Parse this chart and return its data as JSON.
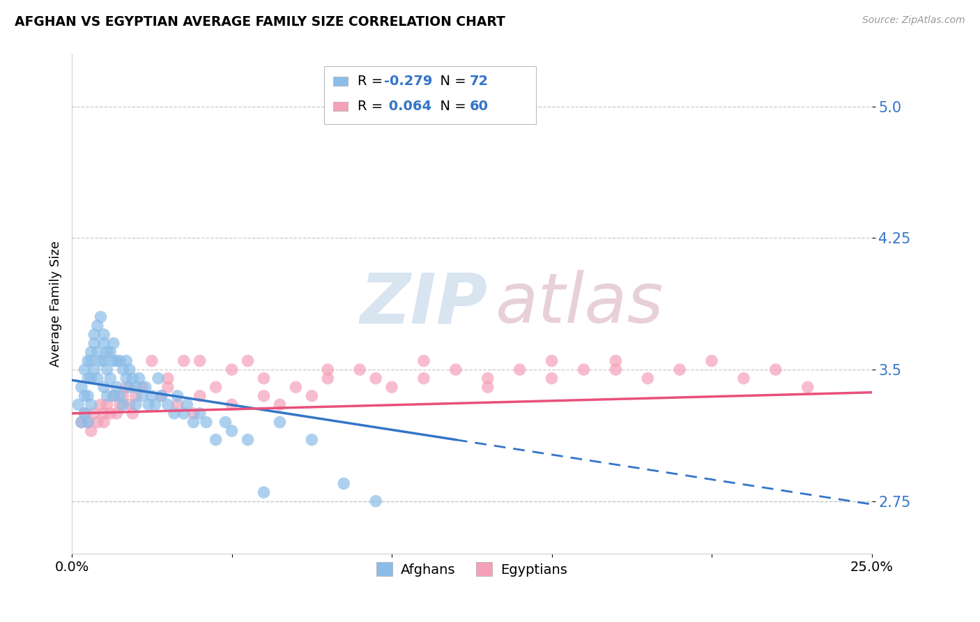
{
  "title": "AFGHAN VS EGYPTIAN AVERAGE FAMILY SIZE CORRELATION CHART",
  "source": "Source: ZipAtlas.com",
  "ylabel": "Average Family Size",
  "yticks": [
    2.75,
    3.5,
    4.25,
    5.0
  ],
  "xlim": [
    0.0,
    0.25
  ],
  "ylim": [
    2.45,
    5.3
  ],
  "legend_R_afghan": "R = -0.279",
  "legend_N_afghan": "N = 72",
  "legend_R_egyptian": "R =  0.064",
  "legend_N_egyptian": "N = 60",
  "afghan_color": "#8bbde8",
  "egyptian_color": "#f4a0b8",
  "trendline_afghan_color": "#3375c8",
  "trendline_egyptian_color": "#e8507a",
  "background_color": "#ffffff",
  "grid_color": "#c8c8c8",
  "watermark_zip": "ZIP",
  "watermark_atlas": "atlas",
  "afghans_x": [
    0.002,
    0.003,
    0.003,
    0.004,
    0.004,
    0.004,
    0.005,
    0.005,
    0.005,
    0.005,
    0.006,
    0.006,
    0.006,
    0.006,
    0.007,
    0.007,
    0.007,
    0.008,
    0.008,
    0.008,
    0.009,
    0.009,
    0.01,
    0.01,
    0.01,
    0.01,
    0.011,
    0.011,
    0.011,
    0.012,
    0.012,
    0.013,
    0.013,
    0.013,
    0.014,
    0.014,
    0.015,
    0.015,
    0.016,
    0.016,
    0.017,
    0.017,
    0.018,
    0.018,
    0.019,
    0.02,
    0.02,
    0.021,
    0.022,
    0.023,
    0.024,
    0.025,
    0.026,
    0.027,
    0.028,
    0.03,
    0.032,
    0.033,
    0.035,
    0.036,
    0.038,
    0.04,
    0.042,
    0.045,
    0.048,
    0.05,
    0.055,
    0.06,
    0.065,
    0.075,
    0.085,
    0.095
  ],
  "afghans_y": [
    3.3,
    3.4,
    3.2,
    3.5,
    3.35,
    3.25,
    3.55,
    3.45,
    3.35,
    3.2,
    3.6,
    3.55,
    3.45,
    3.3,
    3.7,
    3.65,
    3.5,
    3.75,
    3.6,
    3.45,
    3.8,
    3.55,
    3.7,
    3.65,
    3.55,
    3.4,
    3.6,
    3.5,
    3.35,
    3.6,
    3.45,
    3.65,
    3.55,
    3.35,
    3.55,
    3.4,
    3.55,
    3.35,
    3.5,
    3.3,
    3.55,
    3.45,
    3.5,
    3.4,
    3.45,
    3.4,
    3.3,
    3.45,
    3.35,
    3.4,
    3.3,
    3.35,
    3.3,
    3.45,
    3.35,
    3.3,
    3.25,
    3.35,
    3.25,
    3.3,
    3.2,
    3.25,
    3.2,
    3.1,
    3.2,
    3.15,
    3.1,
    2.8,
    3.2,
    3.1,
    2.85,
    2.75
  ],
  "egyptians_x": [
    0.003,
    0.004,
    0.005,
    0.006,
    0.007,
    0.008,
    0.009,
    0.01,
    0.01,
    0.011,
    0.012,
    0.013,
    0.014,
    0.015,
    0.016,
    0.017,
    0.018,
    0.019,
    0.02,
    0.022,
    0.025,
    0.028,
    0.03,
    0.033,
    0.035,
    0.038,
    0.04,
    0.045,
    0.05,
    0.055,
    0.06,
    0.065,
    0.07,
    0.075,
    0.08,
    0.09,
    0.1,
    0.11,
    0.12,
    0.13,
    0.14,
    0.15,
    0.16,
    0.17,
    0.18,
    0.19,
    0.2,
    0.21,
    0.22,
    0.23,
    0.15,
    0.17,
    0.13,
    0.11,
    0.095,
    0.08,
    0.06,
    0.05,
    0.04,
    0.03
  ],
  "egyptians_y": [
    3.2,
    3.25,
    3.2,
    3.15,
    3.25,
    3.2,
    3.3,
    3.25,
    3.2,
    3.3,
    3.25,
    3.35,
    3.25,
    3.3,
    3.35,
    3.4,
    3.3,
    3.25,
    3.35,
    3.4,
    3.55,
    3.35,
    3.4,
    3.3,
    3.55,
    3.25,
    3.35,
    3.4,
    3.3,
    3.55,
    3.35,
    3.3,
    3.4,
    3.35,
    3.45,
    3.5,
    3.4,
    3.45,
    3.5,
    3.4,
    3.5,
    3.45,
    3.5,
    3.55,
    3.45,
    3.5,
    3.55,
    3.45,
    3.5,
    3.4,
    3.55,
    3.5,
    3.45,
    3.55,
    3.45,
    3.5,
    3.45,
    3.5,
    3.55,
    3.45
  ],
  "trendline_afghan_x0": 0.0,
  "trendline_afghan_y0": 3.44,
  "trendline_afghan_x1": 0.12,
  "trendline_afghan_y1": 3.1,
  "trendline_afghan_solid_end": 0.12,
  "trendline_afghan_dash_end": 0.25,
  "trendline_egyptian_x0": 0.0,
  "trendline_egyptian_y0": 3.25,
  "trendline_egyptian_x1": 0.25,
  "trendline_egyptian_y1": 3.37
}
